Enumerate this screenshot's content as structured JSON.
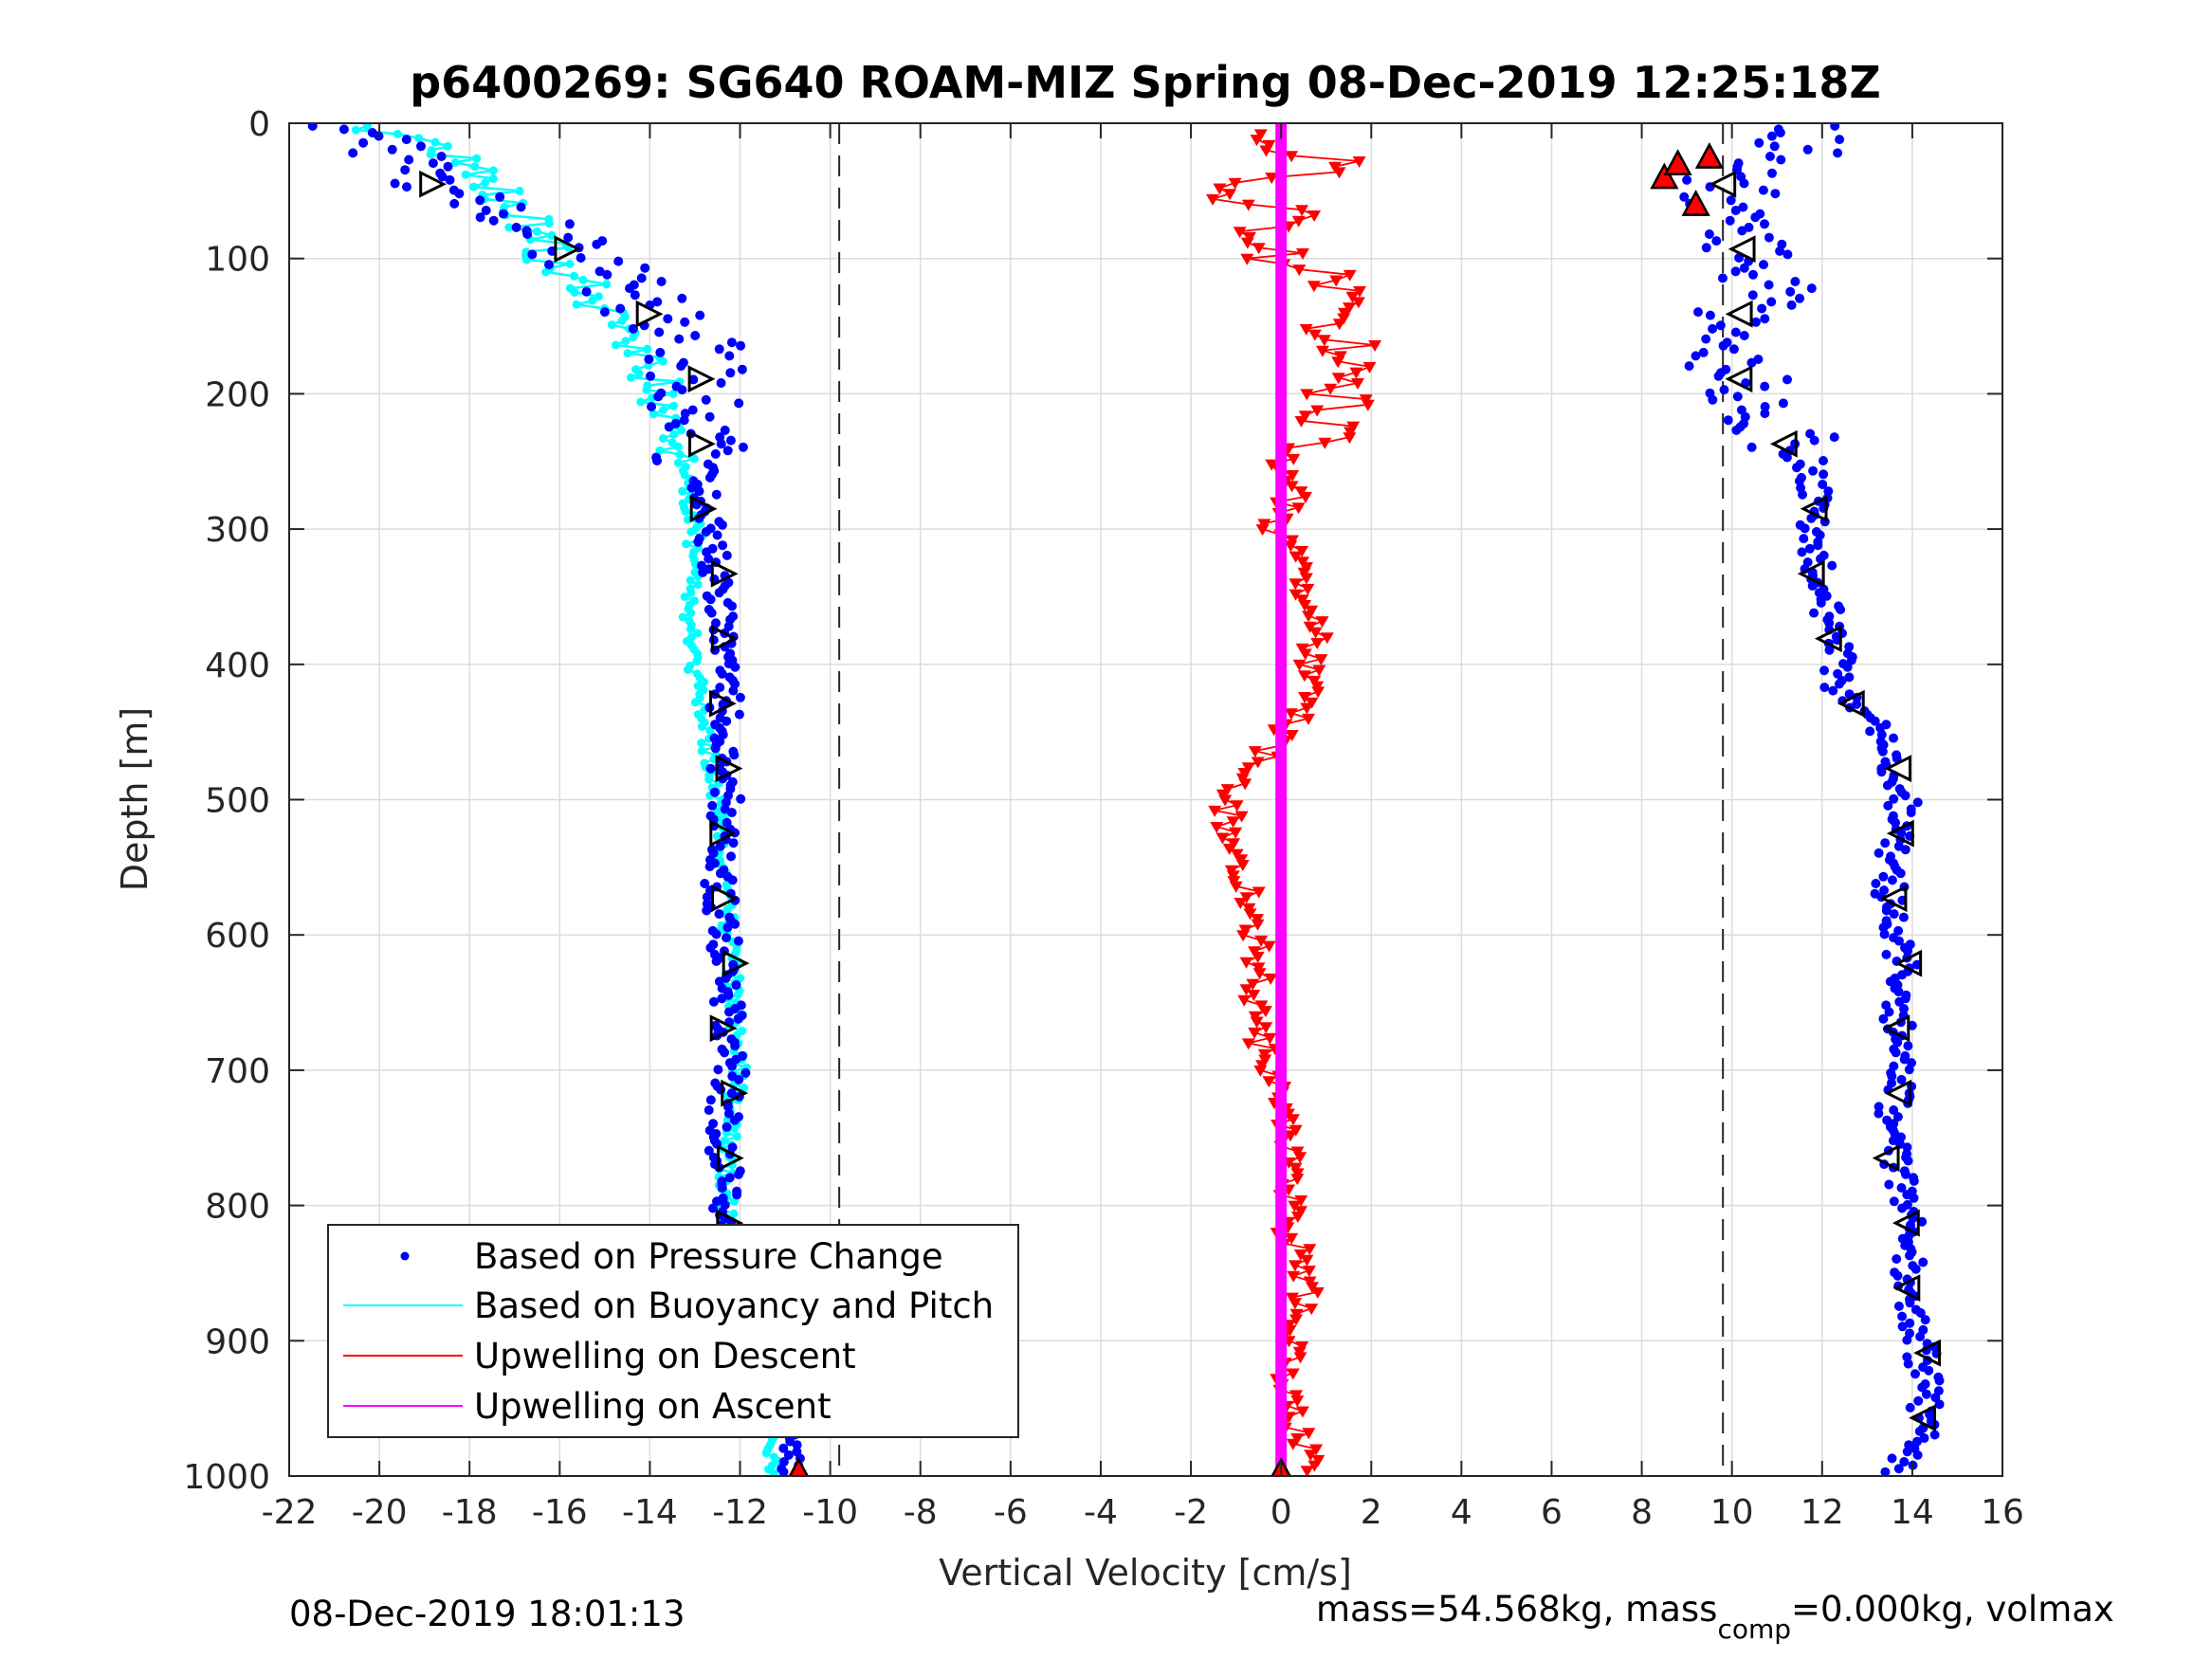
{
  "chart_data": {
    "type": "scatter",
    "title": "p6400269: SG640 ROAM-MIZ Spring 08-Dec-2019 12:25:18Z",
    "xlabel": "Vertical Velocity [cm/s]",
    "ylabel": "Depth [m]",
    "xlim": [
      -22,
      16
    ],
    "ylim": [
      1000,
      0
    ],
    "y_reversed": true,
    "xticks": [
      -22,
      -20,
      -18,
      -16,
      -14,
      -12,
      -10,
      -8,
      -6,
      -4,
      -2,
      0,
      2,
      4,
      6,
      8,
      10,
      12,
      14,
      16
    ],
    "yticks": [
      0,
      100,
      200,
      300,
      400,
      500,
      600,
      700,
      800,
      900,
      1000
    ],
    "grid": true,
    "legend_position": "bottom-left",
    "reference_lines": [
      -9.8,
      9.8
    ],
    "footer_left": "08-Dec-2019 18:01:13",
    "footer_right_a": "mass=54.568kg, mass",
    "footer_right_sub": "comp",
    "footer_right_b": "=0.000kg, volmax",
    "colors": {
      "pressure": "#0000ff",
      "buoyancy": "#00ffff",
      "upwelling_descent": "#ff0000",
      "upwelling_ascent": "#ff00ff"
    },
    "series": [
      {
        "name": "Based on Pressure Change",
        "style": "dots",
        "descent": {
          "depth": [
            0,
            20,
            40,
            60,
            80,
            100,
            120,
            140,
            160,
            180,
            200,
            230,
            260,
            300,
            340,
            380,
            420,
            460,
            500,
            540,
            580,
            620,
            660,
            700,
            740,
            780,
            820,
            860,
            900,
            940,
            970,
            1000
          ],
          "velocity": [
            -21,
            -19.5,
            -19.5,
            -17.5,
            -16.5,
            -15.5,
            -14.5,
            -14,
            -13,
            -13,
            -13,
            -13,
            -12.8,
            -12.7,
            -12.5,
            -12.4,
            -12.3,
            -12.4,
            -12.3,
            -12.5,
            -12.4,
            -12.3,
            -12.3,
            -12.2,
            -12.4,
            -12.3,
            -12.4,
            -12.2,
            -11.7,
            -11.3,
            -11,
            -10.8
          ]
        },
        "ascent": {
          "depth": [
            0,
            20,
            40,
            60,
            80,
            100,
            120,
            140,
            160,
            180,
            200,
            230,
            260,
            300,
            340,
            380,
            420,
            460,
            500,
            540,
            580,
            620,
            660,
            700,
            740,
            780,
            820,
            860,
            900,
            940,
            970,
            1000
          ],
          "velocity": [
            11.5,
            11.5,
            10,
            10,
            9.8,
            10.5,
            10.8,
            10.2,
            10.2,
            10,
            10.5,
            11.2,
            11.8,
            11.8,
            12,
            12.3,
            12.4,
            13.5,
            13.8,
            13.5,
            13.5,
            13.8,
            13.7,
            13.8,
            13.5,
            13.7,
            14,
            13.8,
            14.2,
            14.3,
            14.2,
            13.5
          ]
        }
      },
      {
        "name": "Based on Buoyancy and Pitch",
        "style": "line-dots",
        "depth": [
          0,
          20,
          40,
          60,
          80,
          100,
          120,
          140,
          160,
          180,
          200,
          230,
          260,
          300,
          340,
          380,
          420,
          460,
          500,
          540,
          580,
          620,
          660,
          700,
          740,
          780,
          820,
          860,
          900,
          940,
          970,
          1000
        ],
        "velocity": [
          -21,
          -18.5,
          -17.5,
          -17,
          -16.5,
          -16.2,
          -15.5,
          -15,
          -14.5,
          -14,
          -13.8,
          -13.5,
          -13.2,
          -13,
          -13.1,
          -13.1,
          -12.9,
          -12.7,
          -12.5,
          -12.4,
          -12.3,
          -12.2,
          -12.1,
          -12,
          -12.2,
          -12.3,
          -12.3,
          -12.1,
          -11.8,
          -11.5,
          -11.3,
          -11.2
        ]
      },
      {
        "name": "Upwelling on Descent",
        "style": "triangles",
        "depth": [
          10,
          30,
          50,
          70,
          90,
          110,
          130,
          150,
          170,
          190,
          210,
          240,
          270,
          300,
          330,
          360,
          390,
          420,
          450,
          480,
          510,
          540,
          570,
          600,
          630,
          660,
          690,
          720,
          750,
          780,
          810,
          840,
          870,
          900,
          930,
          960,
          990
        ],
        "velocity": [
          -1,
          1.5,
          -1.5,
          0.5,
          -0.8,
          0.8,
          1.2,
          0.8,
          1.5,
          1.5,
          1.2,
          0.7,
          0.3,
          -0.2,
          0.4,
          0.6,
          0.8,
          0.6,
          0.1,
          -0.7,
          -1.2,
          -1.2,
          -0.6,
          -0.5,
          -0.5,
          -0.7,
          -0.3,
          0.1,
          0.3,
          0.1,
          0.1,
          0.4,
          0.6,
          0.3,
          0.2,
          0.4,
          0.5
        ]
      },
      {
        "name": "Upwelling on Ascent",
        "style": "line",
        "depth": [
          0,
          1000
        ],
        "velocity": [
          0,
          0
        ]
      }
    ]
  }
}
